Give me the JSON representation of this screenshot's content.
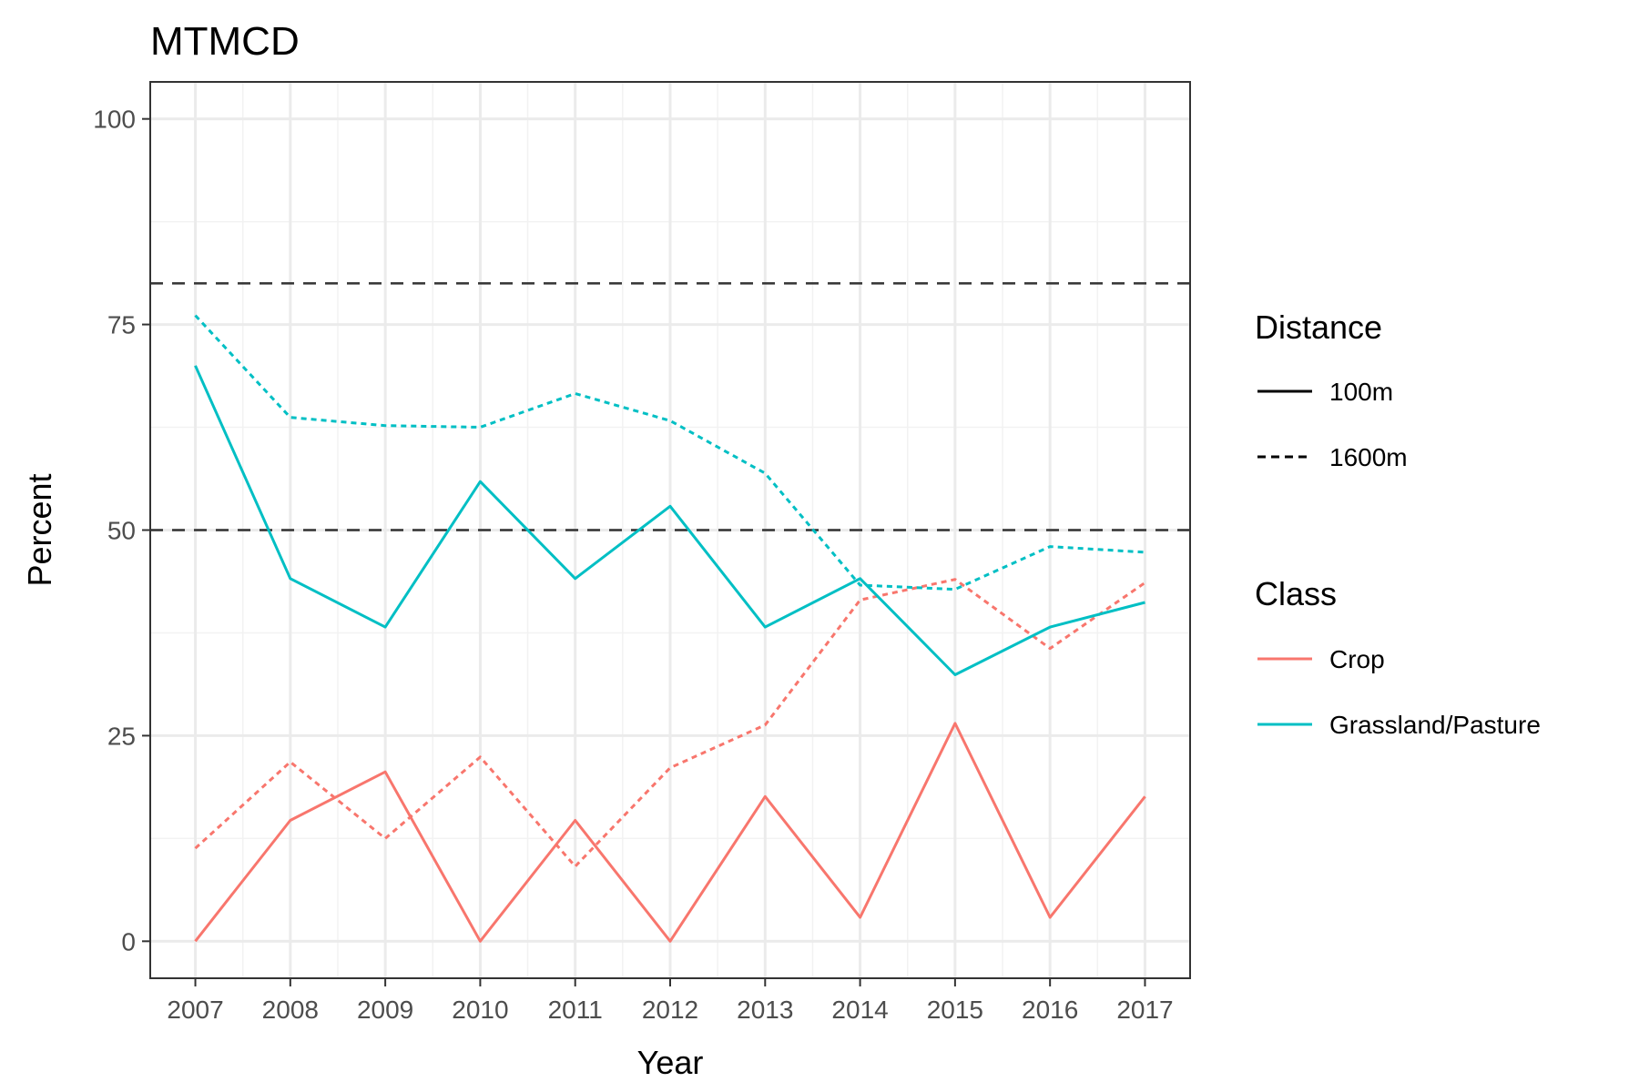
{
  "chart_data": {
    "type": "line",
    "title": "MTMCD",
    "xlabel": "Year",
    "ylabel": "Percent",
    "x": [
      2007,
      2008,
      2009,
      2010,
      2011,
      2012,
      2013,
      2014,
      2015,
      2016,
      2017
    ],
    "ylim": [
      -4.5,
      104.5
    ],
    "yticks": [
      0,
      25,
      50,
      75,
      100
    ],
    "grid": true,
    "reference_lines": [
      50,
      80
    ],
    "series": [
      {
        "class": "Crop",
        "distance": "100m",
        "color": "#F8766D",
        "dash": "solid",
        "values": [
          0,
          14.7,
          20.6,
          0,
          14.7,
          0,
          17.6,
          2.9,
          26.5,
          2.9,
          17.6
        ]
      },
      {
        "class": "Crop",
        "distance": "1600m",
        "color": "#F8766D",
        "dash": "dotted",
        "values": [
          11.3,
          21.8,
          12.5,
          22.4,
          9.1,
          21.1,
          26.3,
          41.5,
          44.0,
          35.6,
          43.6
        ]
      },
      {
        "class": "Grassland/Pasture",
        "distance": "100m",
        "color": "#00BFC4",
        "dash": "solid",
        "values": [
          70.0,
          44.1,
          38.2,
          55.9,
          44.1,
          52.9,
          38.2,
          44.1,
          32.4,
          38.2,
          41.2
        ]
      },
      {
        "class": "Grassland/Pasture",
        "distance": "1600m",
        "color": "#00BFC4",
        "dash": "dotted",
        "values": [
          76.1,
          63.7,
          62.7,
          62.5,
          66.6,
          63.3,
          56.9,
          43.3,
          42.8,
          48.0,
          47.3
        ]
      }
    ],
    "legend": {
      "placement": "right",
      "distance": {
        "title": "Distance",
        "items": [
          {
            "label": "100m",
            "dash": "solid"
          },
          {
            "label": "1600m",
            "dash": "dotted"
          }
        ]
      },
      "class": {
        "title": "Class",
        "items": [
          {
            "label": "Crop",
            "color": "#F8766D"
          },
          {
            "label": "Grassland/Pasture",
            "color": "#00BFC4"
          }
        ]
      }
    }
  }
}
